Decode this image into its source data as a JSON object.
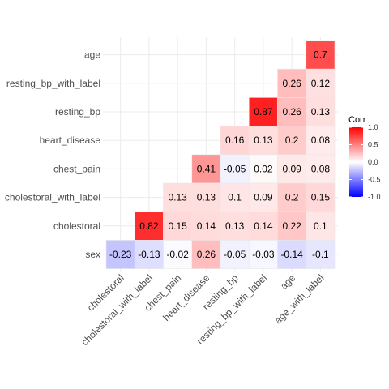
{
  "chart_data": {
    "type": "heatmap",
    "x_categories": [
      "cholestoral",
      "cholestoral_with_label",
      "chest_pain",
      "heart_disease",
      "resting_bp",
      "resting_bp_with_label",
      "age",
      "age_with_label"
    ],
    "y_categories": [
      "sex",
      "cholestoral",
      "cholestoral_with_label",
      "chest_pain",
      "heart_disease",
      "resting_bp",
      "resting_bp_with_label",
      "age"
    ],
    "cells": [
      {
        "y": "age",
        "x": "age_with_label",
        "value": 0.7
      },
      {
        "y": "resting_bp_with_label",
        "x": "age",
        "value": 0.26
      },
      {
        "y": "resting_bp_with_label",
        "x": "age_with_label",
        "value": 0.12
      },
      {
        "y": "resting_bp",
        "x": "resting_bp_with_label",
        "value": 0.87
      },
      {
        "y": "resting_bp",
        "x": "age",
        "value": 0.26
      },
      {
        "y": "resting_bp",
        "x": "age_with_label",
        "value": 0.13
      },
      {
        "y": "heart_disease",
        "x": "resting_bp",
        "value": 0.16
      },
      {
        "y": "heart_disease",
        "x": "resting_bp_with_label",
        "value": 0.13
      },
      {
        "y": "heart_disease",
        "x": "age",
        "value": 0.2
      },
      {
        "y": "heart_disease",
        "x": "age_with_label",
        "value": 0.08
      },
      {
        "y": "chest_pain",
        "x": "heart_disease",
        "value": 0.41
      },
      {
        "y": "chest_pain",
        "x": "resting_bp",
        "value": -0.05
      },
      {
        "y": "chest_pain",
        "x": "resting_bp_with_label",
        "value": 0.02
      },
      {
        "y": "chest_pain",
        "x": "age",
        "value": 0.09
      },
      {
        "y": "chest_pain",
        "x": "age_with_label",
        "value": 0.08
      },
      {
        "y": "cholestoral_with_label",
        "x": "chest_pain",
        "value": 0.13
      },
      {
        "y": "cholestoral_with_label",
        "x": "heart_disease",
        "value": 0.13
      },
      {
        "y": "cholestoral_with_label",
        "x": "resting_bp",
        "value": 0.1
      },
      {
        "y": "cholestoral_with_label",
        "x": "resting_bp_with_label",
        "value": 0.09
      },
      {
        "y": "cholestoral_with_label",
        "x": "age",
        "value": 0.2
      },
      {
        "y": "cholestoral_with_label",
        "x": "age_with_label",
        "value": 0.15
      },
      {
        "y": "cholestoral",
        "x": "cholestoral_with_label",
        "value": 0.82
      },
      {
        "y": "cholestoral",
        "x": "chest_pain",
        "value": 0.15
      },
      {
        "y": "cholestoral",
        "x": "heart_disease",
        "value": 0.14
      },
      {
        "y": "cholestoral",
        "x": "resting_bp",
        "value": 0.13
      },
      {
        "y": "cholestoral",
        "x": "resting_bp_with_label",
        "value": 0.14
      },
      {
        "y": "cholestoral",
        "x": "age",
        "value": 0.22
      },
      {
        "y": "cholestoral",
        "x": "age_with_label",
        "value": 0.1
      },
      {
        "y": "sex",
        "x": "cholestoral",
        "value": -0.23
      },
      {
        "y": "sex",
        "x": "cholestoral_with_label",
        "value": -0.13
      },
      {
        "y": "sex",
        "x": "chest_pain",
        "value": -0.02
      },
      {
        "y": "sex",
        "x": "heart_disease",
        "value": 0.26
      },
      {
        "y": "sex",
        "x": "resting_bp",
        "value": -0.05
      },
      {
        "y": "sex",
        "x": "resting_bp_with_label",
        "value": -0.03
      },
      {
        "y": "sex",
        "x": "age",
        "value": -0.14
      },
      {
        "y": "sex",
        "x": "age_with_label",
        "value": -0.1
      }
    ],
    "legend": {
      "title": "Corr",
      "ticks": [
        "1.0",
        "0.5",
        "0.0",
        "-0.5",
        "-1.0"
      ],
      "tick_values": [
        1.0,
        0.5,
        0.0,
        -0.5,
        -1.0
      ],
      "range": [
        -1,
        1
      ],
      "placement": "right"
    },
    "colors": {
      "high": "#ff0000",
      "mid": "#ffffff",
      "low": "#0000ff",
      "grid": "#ebebeb",
      "tick_text": "#4d4d4d"
    },
    "grid": true
  }
}
